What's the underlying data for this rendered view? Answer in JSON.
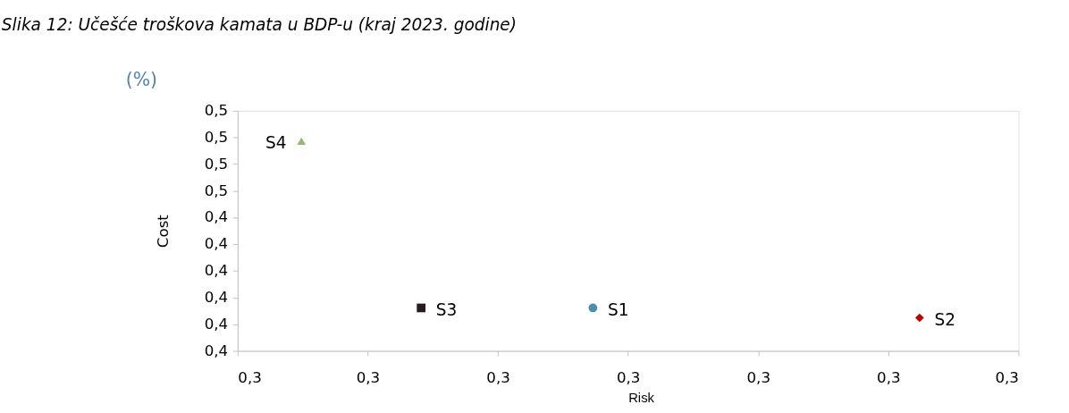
{
  "chart_data": {
    "type": "scatter",
    "title": "Slika 12: Učešće troškova kamata u BDP-u (kraj 2023. godine)",
    "xlabel": "Risk",
    "ylabel": "Cost",
    "annotations": [
      "(%)"
    ],
    "series": [
      {
        "name": "S1",
        "color": "#4a8db3",
        "marker": "circle",
        "x": [
          0.2973
        ],
        "values": [
          0.4061
        ]
      },
      {
        "name": "S2",
        "color": "#c00000",
        "marker": "diamond",
        "x": [
          0.3224
        ],
        "values": [
          0.4024
        ]
      },
      {
        "name": "S3",
        "color": "#231f20",
        "marker": "square",
        "x": [
          0.2841
        ],
        "values": [
          0.4061
        ]
      },
      {
        "name": "S4",
        "color": "#8fbc6f",
        "marker": "triangle",
        "x": [
          0.2749
        ],
        "values": [
          0.4686
        ]
      }
    ],
    "xlim": [
      0.27,
      0.33
    ],
    "ylim": [
      0.39,
      0.48
    ],
    "xticks": [
      {
        "value": 0.27,
        "label": "0,3"
      },
      {
        "value": 0.28,
        "label": "0,3"
      },
      {
        "value": 0.29,
        "label": "0,3"
      },
      {
        "value": 0.3,
        "label": "0,3"
      },
      {
        "value": 0.31,
        "label": "0,3"
      },
      {
        "value": 0.32,
        "label": "0,3"
      },
      {
        "value": 0.33,
        "label": "0,3"
      }
    ],
    "yticks": [
      {
        "value": 0.39,
        "label": "0,4"
      },
      {
        "value": 0.4,
        "label": "0,4"
      },
      {
        "value": 0.41,
        "label": "0,4"
      },
      {
        "value": 0.42,
        "label": "0,4"
      },
      {
        "value": 0.43,
        "label": "0,4"
      },
      {
        "value": 0.44,
        "label": "0,4"
      },
      {
        "value": 0.45,
        "label": "0,5"
      },
      {
        "value": 0.46,
        "label": "0,5"
      },
      {
        "value": 0.47,
        "label": "0,5"
      },
      {
        "value": 0.48,
        "label": "0,5"
      }
    ],
    "grid": false,
    "legend": false
  }
}
